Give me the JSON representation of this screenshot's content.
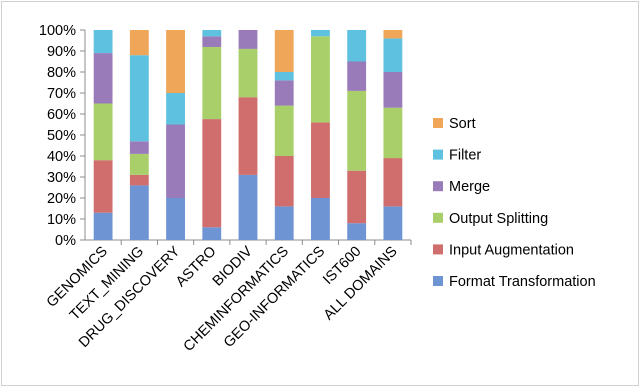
{
  "chart_data": {
    "type": "bar",
    "stacked": "percent",
    "title": "",
    "xlabel": "",
    "ylabel": "",
    "ylim": [
      0,
      100
    ],
    "yticks": [
      "0%",
      "10%",
      "20%",
      "30%",
      "40%",
      "50%",
      "60%",
      "70%",
      "80%",
      "90%",
      "100%"
    ],
    "grid": false,
    "legend_position": "right",
    "categories": [
      "GENOMICS",
      "TEXT_MINING",
      "DRUG_DISCOVERY",
      "ASTRO",
      "BIODIV",
      "CHEMINFORMATICS",
      "GEO-INFORMATICS",
      "IST600",
      "ALL DOMAINS"
    ],
    "series": [
      {
        "name": "Format Transformation",
        "color": "#6f94d3",
        "values": [
          13,
          26,
          20,
          6,
          31,
          16,
          20,
          8,
          16
        ]
      },
      {
        "name": "Input Augmentation",
        "color": "#cf6e6c",
        "values": [
          25,
          5,
          0,
          51,
          37,
          24,
          36,
          25,
          23
        ]
      },
      {
        "name": "Output Splitting",
        "color": "#a9cf6a",
        "values": [
          27,
          10,
          0,
          34,
          23,
          24,
          41,
          38,
          24
        ]
      },
      {
        "name": "Merge",
        "color": "#9a7bba",
        "values": [
          24,
          6,
          35,
          5,
          9,
          12,
          0,
          14,
          17
        ]
      },
      {
        "name": "Filter",
        "color": "#5ec1df",
        "values": [
          11,
          41,
          15,
          3,
          0,
          4,
          3,
          15,
          16
        ]
      },
      {
        "name": "Sort",
        "color": "#f0a659",
        "values": [
          0,
          12,
          30,
          0,
          0,
          20,
          0,
          0,
          4
        ]
      }
    ]
  }
}
